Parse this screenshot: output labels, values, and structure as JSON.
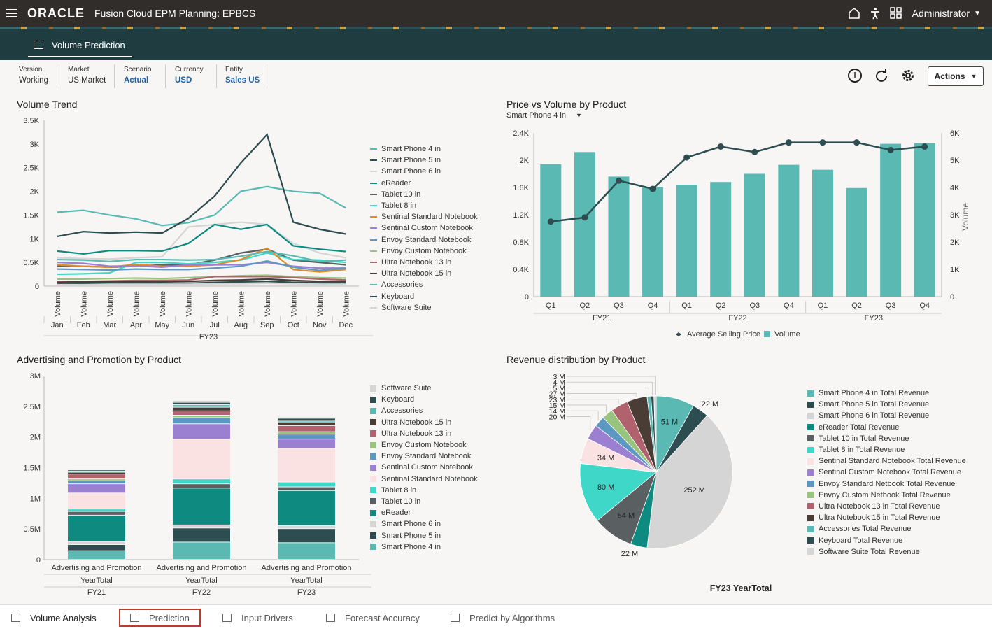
{
  "header": {
    "logo": "ORACLE",
    "app_title": "Fusion Cloud EPM Planning: EPBCS",
    "user": "Administrator"
  },
  "page_tab": "Volume Prediction",
  "pov": [
    {
      "label": "Version",
      "value": "Working",
      "link": false
    },
    {
      "label": "Market",
      "value": "US Market",
      "link": false
    },
    {
      "label": "Scenario",
      "value": "Actual",
      "link": true
    },
    {
      "label": "Currency",
      "value": "USD",
      "link": true
    },
    {
      "label": "Entity",
      "value": "Sales US",
      "link": true
    }
  ],
  "actions_label": "Actions",
  "panels": {
    "volume_trend": "Volume Trend",
    "price_vs_volume": "Price vs Volume by Product",
    "price_selector": "Smart Phone 4 in",
    "advertising": "Advertising and Promotion by Product",
    "revenue": "Revenue distribution by Product"
  },
  "colors": {
    "sp4": "#5ab9b2",
    "sp5": "#2e4d50",
    "sp6": "#d5d5d5",
    "ereader": "#0f8a80",
    "t10": "#5a5f62",
    "t8": "#3fd8c8",
    "ssn": "#fbe2e2",
    "scn": "#9b7fd1",
    "esn": "#5b98c2",
    "ecn": "#98c47e",
    "un13": "#b0636e",
    "un15": "#4a3d36",
    "acc": "#5ab9b2",
    "kb": "#2e4d50",
    "sw": "#d5d5d5",
    "ssn_line": "#e08a2a"
  },
  "chart_data": [
    {
      "type": "line",
      "title": "Volume Trend",
      "categories": [
        "Jan",
        "Feb",
        "Mar",
        "Apr",
        "May",
        "Jun",
        "Jul",
        "Aug",
        "Sep",
        "Oct",
        "Nov",
        "Dec"
      ],
      "x_row_label": "Volume",
      "x_group": "FY23",
      "yticks": [
        "0",
        "0.5K",
        "1K",
        "1.5K",
        "2K",
        "2.5K",
        "3K",
        "3.5K"
      ],
      "ylim": [
        0,
        3500
      ],
      "series": [
        {
          "name": "Smart Phone 4 in",
          "values": [
            1560,
            1600,
            1500,
            1420,
            1280,
            1340,
            1500,
            2000,
            2100,
            2000,
            1960,
            1650
          ]
        },
        {
          "name": "Smart Phone 5 in",
          "values": [
            1050,
            1150,
            1120,
            1140,
            1120,
            1430,
            1900,
            2600,
            3200,
            1350,
            1200,
            1100
          ]
        },
        {
          "name": "Smart Phone 6 in",
          "values": [
            600,
            580,
            570,
            600,
            620,
            1250,
            1300,
            1350,
            1300,
            900,
            700,
            600
          ]
        },
        {
          "name": "eReader",
          "values": [
            740,
            680,
            750,
            750,
            740,
            900,
            1300,
            1200,
            1300,
            850,
            780,
            730
          ]
        },
        {
          "name": "Tablet 10 in",
          "values": [
            420,
            420,
            400,
            420,
            450,
            450,
            550,
            700,
            780,
            550,
            500,
            450
          ]
        },
        {
          "name": "Tablet 8 in",
          "values": [
            250,
            260,
            280,
            500,
            500,
            470,
            500,
            550,
            700,
            560,
            550,
            500
          ]
        },
        {
          "name": "Sentinal Standard Notebook",
          "values": [
            450,
            420,
            400,
            460,
            420,
            420,
            450,
            560,
            800,
            350,
            300,
            350
          ]
        },
        {
          "name": "Sentinal Custom Notebook",
          "values": [
            500,
            480,
            420,
            430,
            400,
            450,
            450,
            450,
            500,
            420,
            380,
            380
          ]
        },
        {
          "name": "Envoy Standard Notebook",
          "values": [
            360,
            350,
            340,
            360,
            350,
            350,
            380,
            420,
            530,
            400,
            330,
            380
          ]
        },
        {
          "name": "Envoy Custom Notebook",
          "values": [
            150,
            150,
            160,
            170,
            160,
            180,
            200,
            220,
            230,
            200,
            180,
            170
          ]
        },
        {
          "name": "Ultra Notebook 13 in",
          "values": [
            100,
            100,
            110,
            120,
            120,
            130,
            200,
            200,
            200,
            180,
            150,
            130
          ]
        },
        {
          "name": "Ultra Notebook 15 in",
          "values": [
            80,
            90,
            90,
            100,
            90,
            100,
            120,
            130,
            150,
            120,
            100,
            100
          ]
        },
        {
          "name": "Accessories",
          "values": [
            560,
            550,
            520,
            560,
            560,
            550,
            560,
            630,
            730,
            640,
            520,
            550
          ]
        },
        {
          "name": "Keyboard",
          "values": [
            50,
            60,
            60,
            70,
            60,
            60,
            80,
            90,
            100,
            80,
            70,
            70
          ]
        },
        {
          "name": "Software Suite",
          "values": [
            30,
            30,
            40,
            40,
            40,
            40,
            50,
            50,
            60,
            50,
            40,
            40
          ]
        }
      ]
    },
    {
      "type": "bar",
      "title": "Price vs Volume by Product",
      "categories": [
        "Q1",
        "Q2",
        "Q3",
        "Q4",
        "Q1",
        "Q2",
        "Q3",
        "Q4",
        "Q1",
        "Q2",
        "Q3",
        "Q4"
      ],
      "groups": [
        "FY21",
        "FY22",
        "FY23"
      ],
      "left_yticks": [
        "0",
        "0.4K",
        "0.8K",
        "1.2K",
        "1.6K",
        "2K",
        "2.4K"
      ],
      "right_yticks": [
        "0",
        "1K",
        "2K",
        "3K",
        "4K",
        "5K",
        "6K"
      ],
      "right_ylabel": "Volume",
      "ylim_left": [
        0,
        2400
      ],
      "ylim_right": [
        0,
        6000
      ],
      "series": [
        {
          "name": "Volume",
          "axis": "right",
          "values": [
            4850,
            5300,
            4400,
            4020,
            4100,
            4200,
            4500,
            4830,
            4650,
            3980,
            5600,
            5620
          ]
        },
        {
          "name": "Average Selling Price",
          "axis": "left",
          "values": [
            1100,
            1160,
            1700,
            1580,
            2040,
            2200,
            2120,
            2260,
            2260,
            2260,
            2150,
            2200
          ]
        }
      ]
    },
    {
      "type": "bar",
      "title": "Advertising and Promotion by Product",
      "stacked": true,
      "categories": [
        "Advertising and Promotion",
        "Advertising and Promotion",
        "Advertising and Promotion"
      ],
      "row2": [
        "YearTotal",
        "YearTotal",
        "YearTotal"
      ],
      "row3": [
        "FY21",
        "FY22",
        "FY23"
      ],
      "yticks": [
        "0",
        "0.5M",
        "1M",
        "1.5M",
        "2M",
        "2.5M",
        "3M"
      ],
      "ylim": [
        0,
        3000000
      ],
      "series": [
        {
          "name": "Smart Phone 4 in",
          "values": [
            140000,
            280000,
            270000
          ]
        },
        {
          "name": "Smart Phone 5 in",
          "values": [
            100000,
            230000,
            230000
          ]
        },
        {
          "name": "Smart Phone 6 in",
          "values": [
            50000,
            50000,
            50000
          ]
        },
        {
          "name": "eReader",
          "values": [
            430000,
            600000,
            570000
          ]
        },
        {
          "name": "Tablet 10 in",
          "values": [
            60000,
            70000,
            60000
          ]
        },
        {
          "name": "Tablet 8 in",
          "values": [
            40000,
            80000,
            80000
          ]
        },
        {
          "name": "Sentinal Standard Notebook",
          "values": [
            260000,
            650000,
            550000
          ]
        },
        {
          "name": "Sentinal Custom Notebook",
          "values": [
            150000,
            250000,
            150000
          ]
        },
        {
          "name": "Envoy Standard Notebook",
          "values": [
            50000,
            100000,
            80000
          ]
        },
        {
          "name": "Envoy Custom Notebook",
          "values": [
            30000,
            40000,
            40000
          ]
        },
        {
          "name": "Ultra Notebook 13 in",
          "values": [
            80000,
            70000,
            100000
          ]
        },
        {
          "name": "Ultra Notebook 15 in",
          "values": [
            30000,
            60000,
            60000
          ]
        },
        {
          "name": "Accessories",
          "values": [
            20000,
            40000,
            30000
          ]
        },
        {
          "name": "Keyboard",
          "values": [
            20000,
            40000,
            30000
          ]
        },
        {
          "name": "Software Suite",
          "values": [
            15000,
            30000,
            20000
          ]
        }
      ]
    },
    {
      "type": "pie",
      "title": "Revenue distribution by Product",
      "footer": "FY23 YearTotal",
      "slices": [
        {
          "name": "Smart Phone 4 in Total Revenue",
          "value": 51,
          "label": "51 M"
        },
        {
          "name": "Smart Phone 5 in Total Revenue",
          "value": 22,
          "label": "22 M"
        },
        {
          "name": "Smart Phone 6 in Total Revenue",
          "value": 252,
          "label": "252 M"
        },
        {
          "name": "eReader Total Revenue",
          "value": 22,
          "label": "22 M"
        },
        {
          "name": "Tablet 10 in Total Revenue",
          "value": 54,
          "label": "54 M"
        },
        {
          "name": "Tablet 8 in Total Revenue",
          "value": 80,
          "label": "80 M"
        },
        {
          "name": "Sentinal Standard Notebook Total Revenue",
          "value": 34,
          "label": "34 M"
        },
        {
          "name": "Sentinal Custom Notebook Total Revenue",
          "value": 20,
          "label": "20 M"
        },
        {
          "name": "Envoy Standard Netbook Total Revenue",
          "value": 14,
          "label": "14 M"
        },
        {
          "name": "Envoy Custom Netbook Total Revenue",
          "value": 15,
          "label": "15 M"
        },
        {
          "name": "Ultra Notebook 13 in Total Revenue",
          "value": 23,
          "label": "23 M"
        },
        {
          "name": "Ultra Notebook 15 in Total Revenue",
          "value": 27,
          "label": "27 M"
        },
        {
          "name": "Accessories Total Revenue",
          "value": 5,
          "label": "5 M"
        },
        {
          "name": "Keyboard Total Revenue",
          "value": 4,
          "label": "4 M"
        },
        {
          "name": "Software Suite Total Revenue",
          "value": 3,
          "label": "3 M"
        }
      ]
    }
  ],
  "bottom_tabs": [
    "Volume Analysis",
    "Prediction",
    "Input Drivers",
    "Forecast Accuracy",
    "Predict by Algorithms"
  ]
}
